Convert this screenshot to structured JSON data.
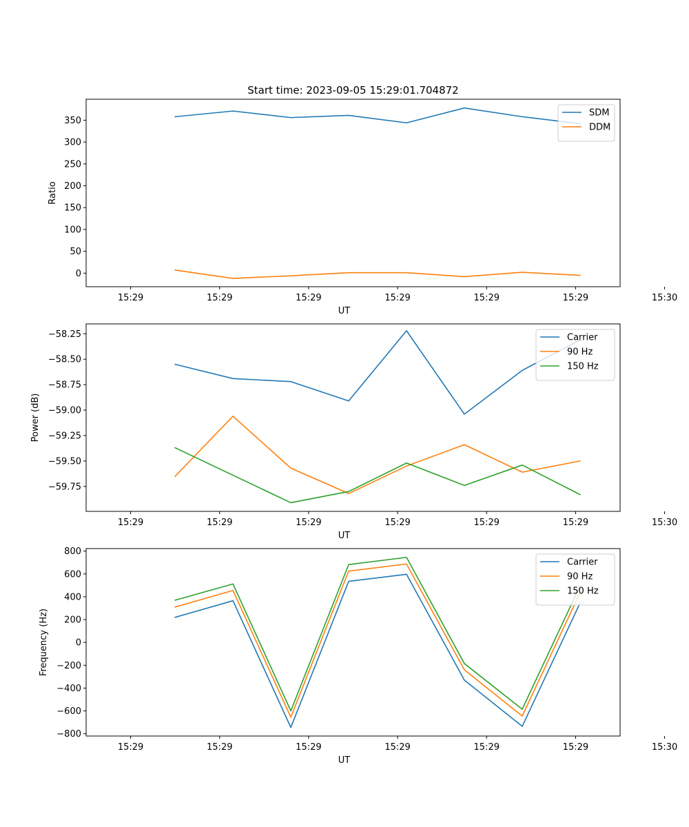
{
  "figure": {
    "title": "Start time: 2023-09-05 15:29:01.704872"
  },
  "chart_data": [
    {
      "type": "line",
      "title": "Start time: 2023-09-05 15:29:01.704872",
      "xlabel": "UT",
      "ylabel": "Ratio",
      "x": [
        0.5,
        1.15,
        1.8,
        2.45,
        3.1,
        3.75,
        4.4,
        5.05
      ],
      "xlim": [
        -0.5,
        5.5
      ],
      "xticks": [
        0,
        1,
        2,
        3,
        4,
        5,
        6
      ],
      "xtick_labels": [
        "15:29",
        "15:29",
        "15:29",
        "15:29",
        "15:29",
        "15:29",
        "15:30"
      ],
      "ylim": [
        -31,
        398
      ],
      "yticks": [
        0,
        50,
        100,
        150,
        200,
        250,
        300,
        350
      ],
      "ytick_labels": [
        "0",
        "50",
        "100",
        "150",
        "200",
        "250",
        "300",
        "350"
      ],
      "legend_position": "top-right",
      "series": [
        {
          "name": "SDM",
          "color": "#1f77b4",
          "values": [
            358,
            371,
            356,
            361,
            344,
            378,
            358,
            342
          ]
        },
        {
          "name": "DDM",
          "color": "#ff7f0e",
          "values": [
            7,
            -12,
            -6,
            1,
            1,
            -8,
            2,
            -5
          ]
        }
      ]
    },
    {
      "type": "line",
      "xlabel": "UT",
      "ylabel": "Power (dB)",
      "x": [
        0.5,
        1.15,
        1.8,
        2.45,
        3.1,
        3.75,
        4.4,
        5.05
      ],
      "xlim": [
        -0.5,
        5.5
      ],
      "xticks": [
        0,
        1,
        2,
        3,
        4,
        5,
        6
      ],
      "xtick_labels": [
        "15:29",
        "15:29",
        "15:29",
        "15:29",
        "15:29",
        "15:29",
        "15:30"
      ],
      "ylim": [
        -59.995,
        -58.153
      ],
      "yticks": [
        -59.75,
        -59.5,
        -59.25,
        -59.0,
        -58.75,
        -58.5,
        -58.25
      ],
      "ytick_labels": [
        "−59.75",
        "−59.50",
        "−59.25",
        "−59.00",
        "−58.75",
        "−58.50",
        "−58.25"
      ],
      "legend_position": "top-right",
      "series": [
        {
          "name": "Carrier",
          "color": "#1f77b4",
          "values": [
            -58.55,
            -58.69,
            -58.72,
            -58.91,
            -58.22,
            -59.04,
            -58.61,
            -58.31
          ]
        },
        {
          "name": "90 Hz",
          "color": "#ff7f0e",
          "values": [
            -59.65,
            -59.06,
            -59.57,
            -59.82,
            -59.55,
            -59.34,
            -59.61,
            -59.5
          ]
        },
        {
          "name": "150 Hz",
          "color": "#2ca02c",
          "values": [
            -59.37,
            -59.64,
            -59.91,
            -59.8,
            -59.52,
            -59.74,
            -59.54,
            -59.83
          ]
        }
      ]
    },
    {
      "type": "line",
      "xlabel": "UT",
      "ylabel": "Frequency (Hz)",
      "x": [
        0.5,
        1.15,
        1.8,
        2.45,
        3.1,
        3.75,
        4.4,
        5.05
      ],
      "xlim": [
        -0.5,
        5.5
      ],
      "xticks": [
        0,
        1,
        2,
        3,
        4,
        5,
        6
      ],
      "xtick_labels": [
        "15:29",
        "15:29",
        "15:29",
        "15:29",
        "15:29",
        "15:29",
        "15:30"
      ],
      "ylim": [
        -820,
        822
      ],
      "yticks": [
        -800,
        -600,
        -400,
        -200,
        0,
        200,
        400,
        600,
        800
      ],
      "ytick_labels": [
        "−800",
        "−600",
        "−400",
        "−200",
        "0",
        "200",
        "400",
        "600",
        "800"
      ],
      "legend_position": "top-right",
      "series": [
        {
          "name": "Carrier",
          "color": "#1f77b4",
          "values": [
            220,
            365,
            -745,
            535,
            597,
            -330,
            -735,
            345
          ]
        },
        {
          "name": "90 Hz",
          "color": "#ff7f0e",
          "values": [
            310,
            455,
            -655,
            625,
            687,
            -240,
            -645,
            435
          ]
        },
        {
          "name": "150 Hz",
          "color": "#2ca02c",
          "values": [
            370,
            512,
            -600,
            682,
            745,
            -185,
            -585,
            495
          ]
        }
      ]
    }
  ]
}
